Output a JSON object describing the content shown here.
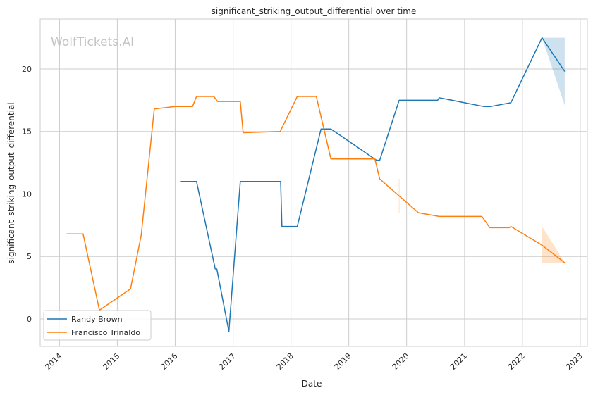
{
  "chart_data": {
    "type": "line",
    "title": "significant_striking_output_differential over time",
    "xlabel": "Date",
    "ylabel": "significant_striking_output_differential",
    "watermark": "WolfTickets.AI",
    "xlim": [
      "2013-09-01",
      "2023-02-15"
    ],
    "ylim": [
      -2.2,
      24.0
    ],
    "x_ticks": [
      "2014",
      "2015",
      "2016",
      "2017",
      "2018",
      "2019",
      "2020",
      "2021",
      "2022",
      "2023"
    ],
    "y_ticks": [
      0,
      5,
      10,
      15,
      20
    ],
    "grid": true,
    "legend_position": "lower-left",
    "series": [
      {
        "name": "Randy Brown",
        "color": "#1f77b4",
        "points": [
          [
            "2016-02-01",
            11.0
          ],
          [
            "2016-05-15",
            11.0
          ],
          [
            "2016-09-10",
            4.0
          ],
          [
            "2016-09-20",
            4.0
          ],
          [
            "2016-12-05",
            -1.0
          ],
          [
            "2017-02-15",
            11.0
          ],
          [
            "2017-10-28",
            11.0
          ],
          [
            "2017-11-05",
            7.4
          ],
          [
            "2018-02-10",
            7.4
          ],
          [
            "2018-07-10",
            15.2
          ],
          [
            "2018-09-10",
            15.2
          ],
          [
            "2019-06-25",
            12.7
          ],
          [
            "2019-07-15",
            12.7
          ],
          [
            "2019-11-15",
            17.5
          ],
          [
            "2020-07-15",
            17.5
          ],
          [
            "2020-07-25",
            17.7
          ],
          [
            "2021-05-01",
            17.0
          ],
          [
            "2021-06-15",
            17.0
          ],
          [
            "2021-10-20",
            17.3
          ],
          [
            "2022-05-05",
            22.5
          ],
          [
            "2022-09-25",
            19.8
          ]
        ],
        "band": [
          [
            "2022-05-05",
            22.5,
            22.5
          ],
          [
            "2022-09-25",
            17.1,
            22.5
          ]
        ]
      },
      {
        "name": "Francisco Trinaldo",
        "color": "#ff7f0e",
        "points": [
          [
            "2014-02-15",
            6.8
          ],
          [
            "2014-05-30",
            6.8
          ],
          [
            "2014-09-10",
            0.7
          ],
          [
            "2015-03-25",
            2.4
          ],
          [
            "2015-06-01",
            6.7
          ],
          [
            "2015-08-22",
            16.8
          ],
          [
            "2016-01-01",
            17.0
          ],
          [
            "2016-04-20",
            17.0
          ],
          [
            "2016-05-15",
            17.8
          ],
          [
            "2016-09-01",
            17.8
          ],
          [
            "2016-09-25",
            17.4
          ],
          [
            "2017-02-15",
            17.4
          ],
          [
            "2017-03-05",
            14.9
          ],
          [
            "2017-10-25",
            15.0
          ],
          [
            "2018-02-10",
            17.8
          ],
          [
            "2018-06-10",
            17.8
          ],
          [
            "2018-09-10",
            12.8
          ],
          [
            "2019-06-15",
            12.8
          ],
          [
            "2019-07-15",
            11.2
          ],
          [
            "2020-03-15",
            8.5
          ],
          [
            "2020-07-25",
            8.2
          ],
          [
            "2021-04-20",
            8.2
          ],
          [
            "2021-06-10",
            7.3
          ],
          [
            "2021-10-10",
            7.3
          ],
          [
            "2021-10-20",
            7.4
          ],
          [
            "2022-05-05",
            5.9
          ],
          [
            "2022-09-25",
            4.5
          ]
        ],
        "band": [
          [
            "2022-05-05",
            4.5,
            7.4
          ],
          [
            "2022-09-25",
            4.5,
            4.5
          ]
        ],
        "error_bars": [
          [
            "2019-11-15",
            8.5,
            11.2
          ]
        ]
      }
    ]
  }
}
